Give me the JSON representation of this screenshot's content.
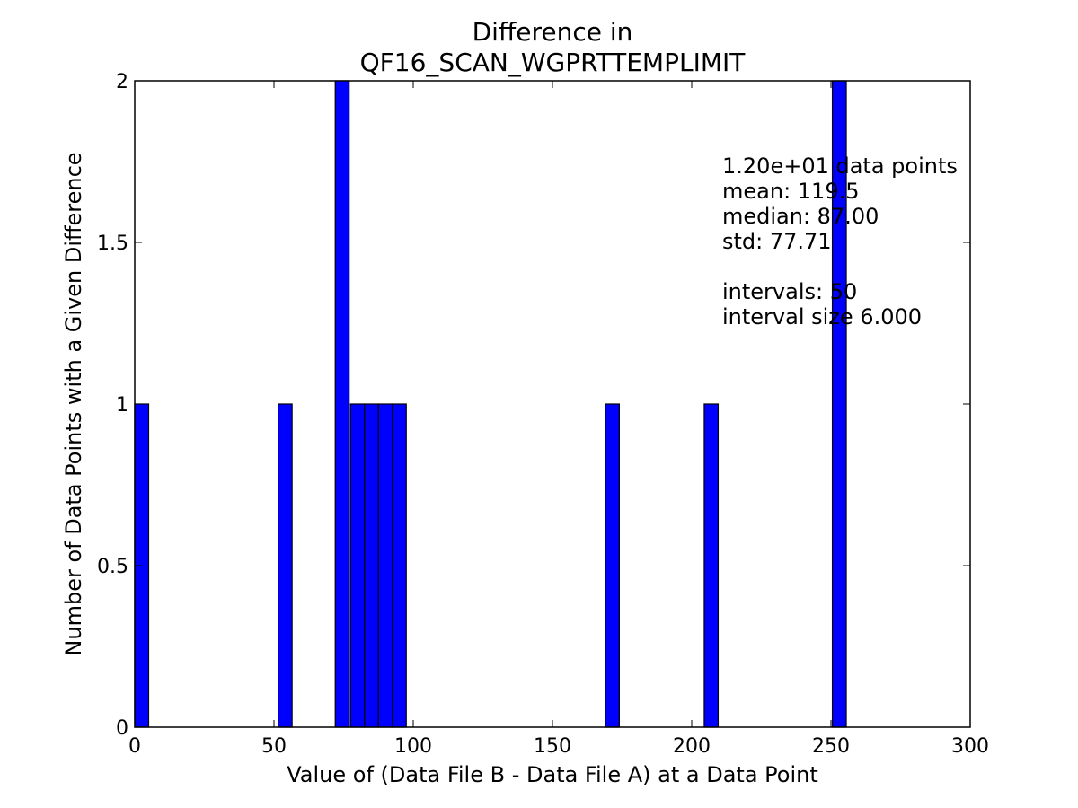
{
  "chart_data": {
    "type": "bar",
    "title_lines": [
      "Difference in",
      "QF16_SCAN_WGPRTTEMPLIMIT"
    ],
    "xlabel": "Value of (Data File B - Data File A) at a Data Point",
    "ylabel": "Number of Data Points with a Given Difference",
    "xlim": [
      0,
      300
    ],
    "ylim": [
      0,
      2
    ],
    "x_ticks": [
      0,
      50,
      100,
      150,
      200,
      250,
      300
    ],
    "x_tick_labels": [
      "0",
      "50",
      "100",
      "150",
      "200",
      "250",
      "300"
    ],
    "y_ticks": [
      0,
      0.5,
      1,
      1.5,
      2
    ],
    "y_tick_labels": [
      "0",
      "0.5",
      "1",
      "1.5",
      "2"
    ],
    "grid": false,
    "bar_color": "#0000ff",
    "bars": [
      {
        "x0": 0,
        "x1": 5,
        "count": 1
      },
      {
        "x0": 51.5,
        "x1": 56.5,
        "count": 1
      },
      {
        "x0": 72,
        "x1": 77,
        "count": 2
      },
      {
        "x0": 77.5,
        "x1": 82.5,
        "count": 1
      },
      {
        "x0": 82.5,
        "x1": 87.5,
        "count": 1
      },
      {
        "x0": 87.5,
        "x1": 92.5,
        "count": 1
      },
      {
        "x0": 92.5,
        "x1": 97.5,
        "count": 1
      },
      {
        "x0": 169,
        "x1": 174,
        "count": 1
      },
      {
        "x0": 204.5,
        "x1": 209.5,
        "count": 1
      },
      {
        "x0": 250.5,
        "x1": 255.5,
        "count": 2
      }
    ],
    "stats_lines": [
      "1.20e+01 data points",
      "mean: 119.5",
      "median: 87.00",
      "std: 77.71",
      "",
      "intervals: 50",
      "interval size 6.000"
    ]
  }
}
